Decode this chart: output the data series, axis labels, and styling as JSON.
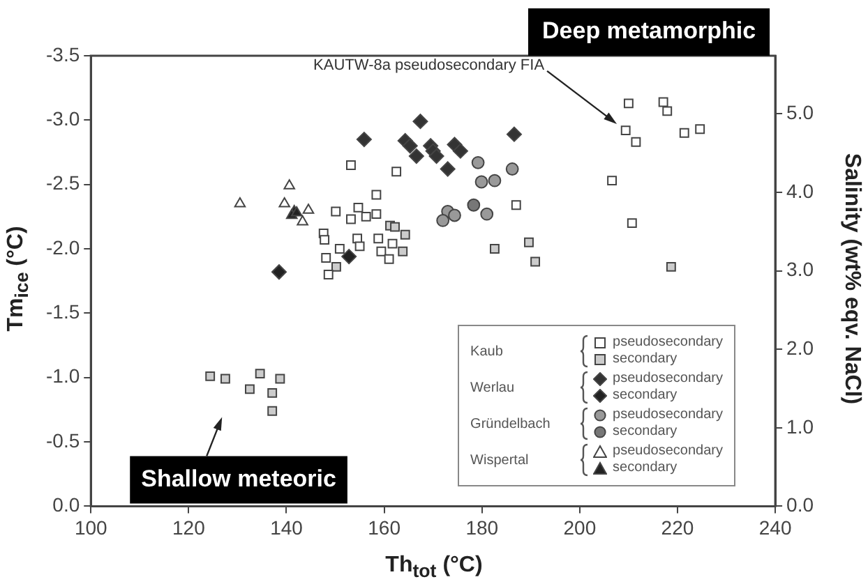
{
  "chart_data": {
    "type": "scatter",
    "xlabel": "Th$_{tot}$ (°C)",
    "ylabel": "Tm$_{ice}$ (°C)",
    "y2label": "Salinity (wt% eqv. NaCl)",
    "xlim": [
      100,
      240
    ],
    "xticks": [
      100,
      120,
      140,
      160,
      180,
      200,
      220,
      240
    ],
    "ylim": [
      0,
      -3.5
    ],
    "yticks": [
      {
        "value": -3.5,
        "label": "-3.5"
      },
      {
        "value": -3,
        "label": "-3.0"
      },
      {
        "value": -2.5,
        "label": "-2.5"
      },
      {
        "value": -2,
        "label": "-2.0"
      },
      {
        "value": -1.5,
        "label": "-1.5"
      },
      {
        "value": -1,
        "label": "-1.0"
      },
      {
        "value": -0.5,
        "label": "-0.5"
      },
      {
        "value": 0,
        "label": "0.0"
      }
    ],
    "y2lim": [
      0,
      5.74
    ],
    "y2ticks": [
      {
        "value": 0,
        "label": "0.0"
      },
      {
        "value": 1,
        "label": "1.0"
      },
      {
        "value": 2,
        "label": "2.0"
      },
      {
        "value": 3,
        "label": "3.0"
      },
      {
        "value": 4,
        "label": "4.0"
      },
      {
        "value": 5,
        "label": "5.0"
      }
    ],
    "grid": false,
    "legend": "bottom right",
    "series": [
      {
        "name": "pseudosecondary",
        "color": "#ffffff",
        "marker": "square",
        "x": [
          153.2,
          162.5,
          158.4,
          187.0,
          150.1,
          154.7,
          153.2,
          156.3,
          158.4,
          154.5,
          150.9,
          158.8,
          159.4,
          161.0,
          161.7,
          155.0,
          147.6,
          147.8,
          148.1,
          148.6,
          210.0,
          217.1,
          217.9,
          209.4,
          211.5,
          221.4,
          224.6,
          206.6,
          210.7
        ],
        "values": [
          -2.65,
          -2.6,
          -2.42,
          -2.34,
          -2.29,
          -2.32,
          -2.23,
          -2.25,
          -2.27,
          -2.08,
          -2.0,
          -2.08,
          -1.98,
          -1.92,
          -2.04,
          -2.02,
          -2.12,
          -2.07,
          -1.93,
          -1.8,
          -3.13,
          -3.14,
          -3.07,
          -2.92,
          -2.83,
          -2.9,
          -2.93,
          -2.53,
          -2.2
        ]
      },
      {
        "name": "secondary",
        "color": "#cccccc",
        "marker": "square",
        "x": [
          161.2,
          164.3,
          163.8,
          162.2,
          182.6,
          189.6,
          190.9,
          150.2,
          218.7,
          124.4,
          127.5,
          134.6,
          138.7,
          132.5,
          137.1,
          137.1
        ],
        "values": [
          -2.18,
          -2.11,
          -1.98,
          -2.17,
          -2.0,
          -2.05,
          -1.9,
          -1.86,
          -1.86,
          -1.01,
          -0.99,
          -1.03,
          -0.99,
          -0.91,
          -0.88,
          -0.74
        ]
      },
      {
        "name": "pseudosecondary",
        "color": "#333333",
        "marker": "diamond",
        "x": [
          167.4,
          155.9,
          164.3,
          165.3,
          169.5,
          170.0,
          174.4,
          175.6,
          166.6,
          170.7,
          173.0,
          186.6
        ],
        "values": [
          -2.99,
          -2.85,
          -2.84,
          -2.8,
          -2.8,
          -2.76,
          -2.81,
          -2.76,
          -2.72,
          -2.72,
          -2.62,
          -2.89
        ]
      },
      {
        "name": "secondary",
        "color": "#222222",
        "marker": "diamond",
        "x": [
          138.5,
          152.8
        ],
        "values": [
          -1.82,
          -1.94
        ]
      },
      {
        "name": "pseudosecondary",
        "color": "#999999",
        "marker": "circle",
        "x": [
          179.2,
          179.9,
          182.6,
          186.2,
          173.0,
          172.0,
          174.4,
          181.0
        ],
        "values": [
          -2.67,
          -2.52,
          -2.53,
          -2.62,
          -2.29,
          -2.22,
          -2.26,
          -2.27
        ]
      },
      {
        "name": "secondary",
        "color": "#777777",
        "marker": "circle",
        "x": [
          178.3
        ],
        "values": [
          -2.34
        ]
      },
      {
        "name": "pseudosecondary",
        "color": "#ffffff",
        "marker": "triangle",
        "x": [
          140.6,
          130.5,
          139.6,
          144.5,
          143.3
        ],
        "values": [
          -2.49,
          -2.35,
          -2.35,
          -2.3,
          -2.21
        ]
      },
      {
        "name": "secondary",
        "color": "#222222",
        "marker": "triangle",
        "x": [
          141.6,
          141.1,
          142.1
        ],
        "values": [
          -2.29,
          -2.26,
          -2.28
        ]
      }
    ],
    "annotations": [
      {
        "text": "KAUTW-8a pseudosecondary FIA",
        "x": 207.6,
        "y": -2.97
      },
      "Deep metamorphic",
      "Shallow meteoric",
      "Kaub",
      "Werlau",
      "Gründelbach",
      "Wispertal"
    ]
  }
}
